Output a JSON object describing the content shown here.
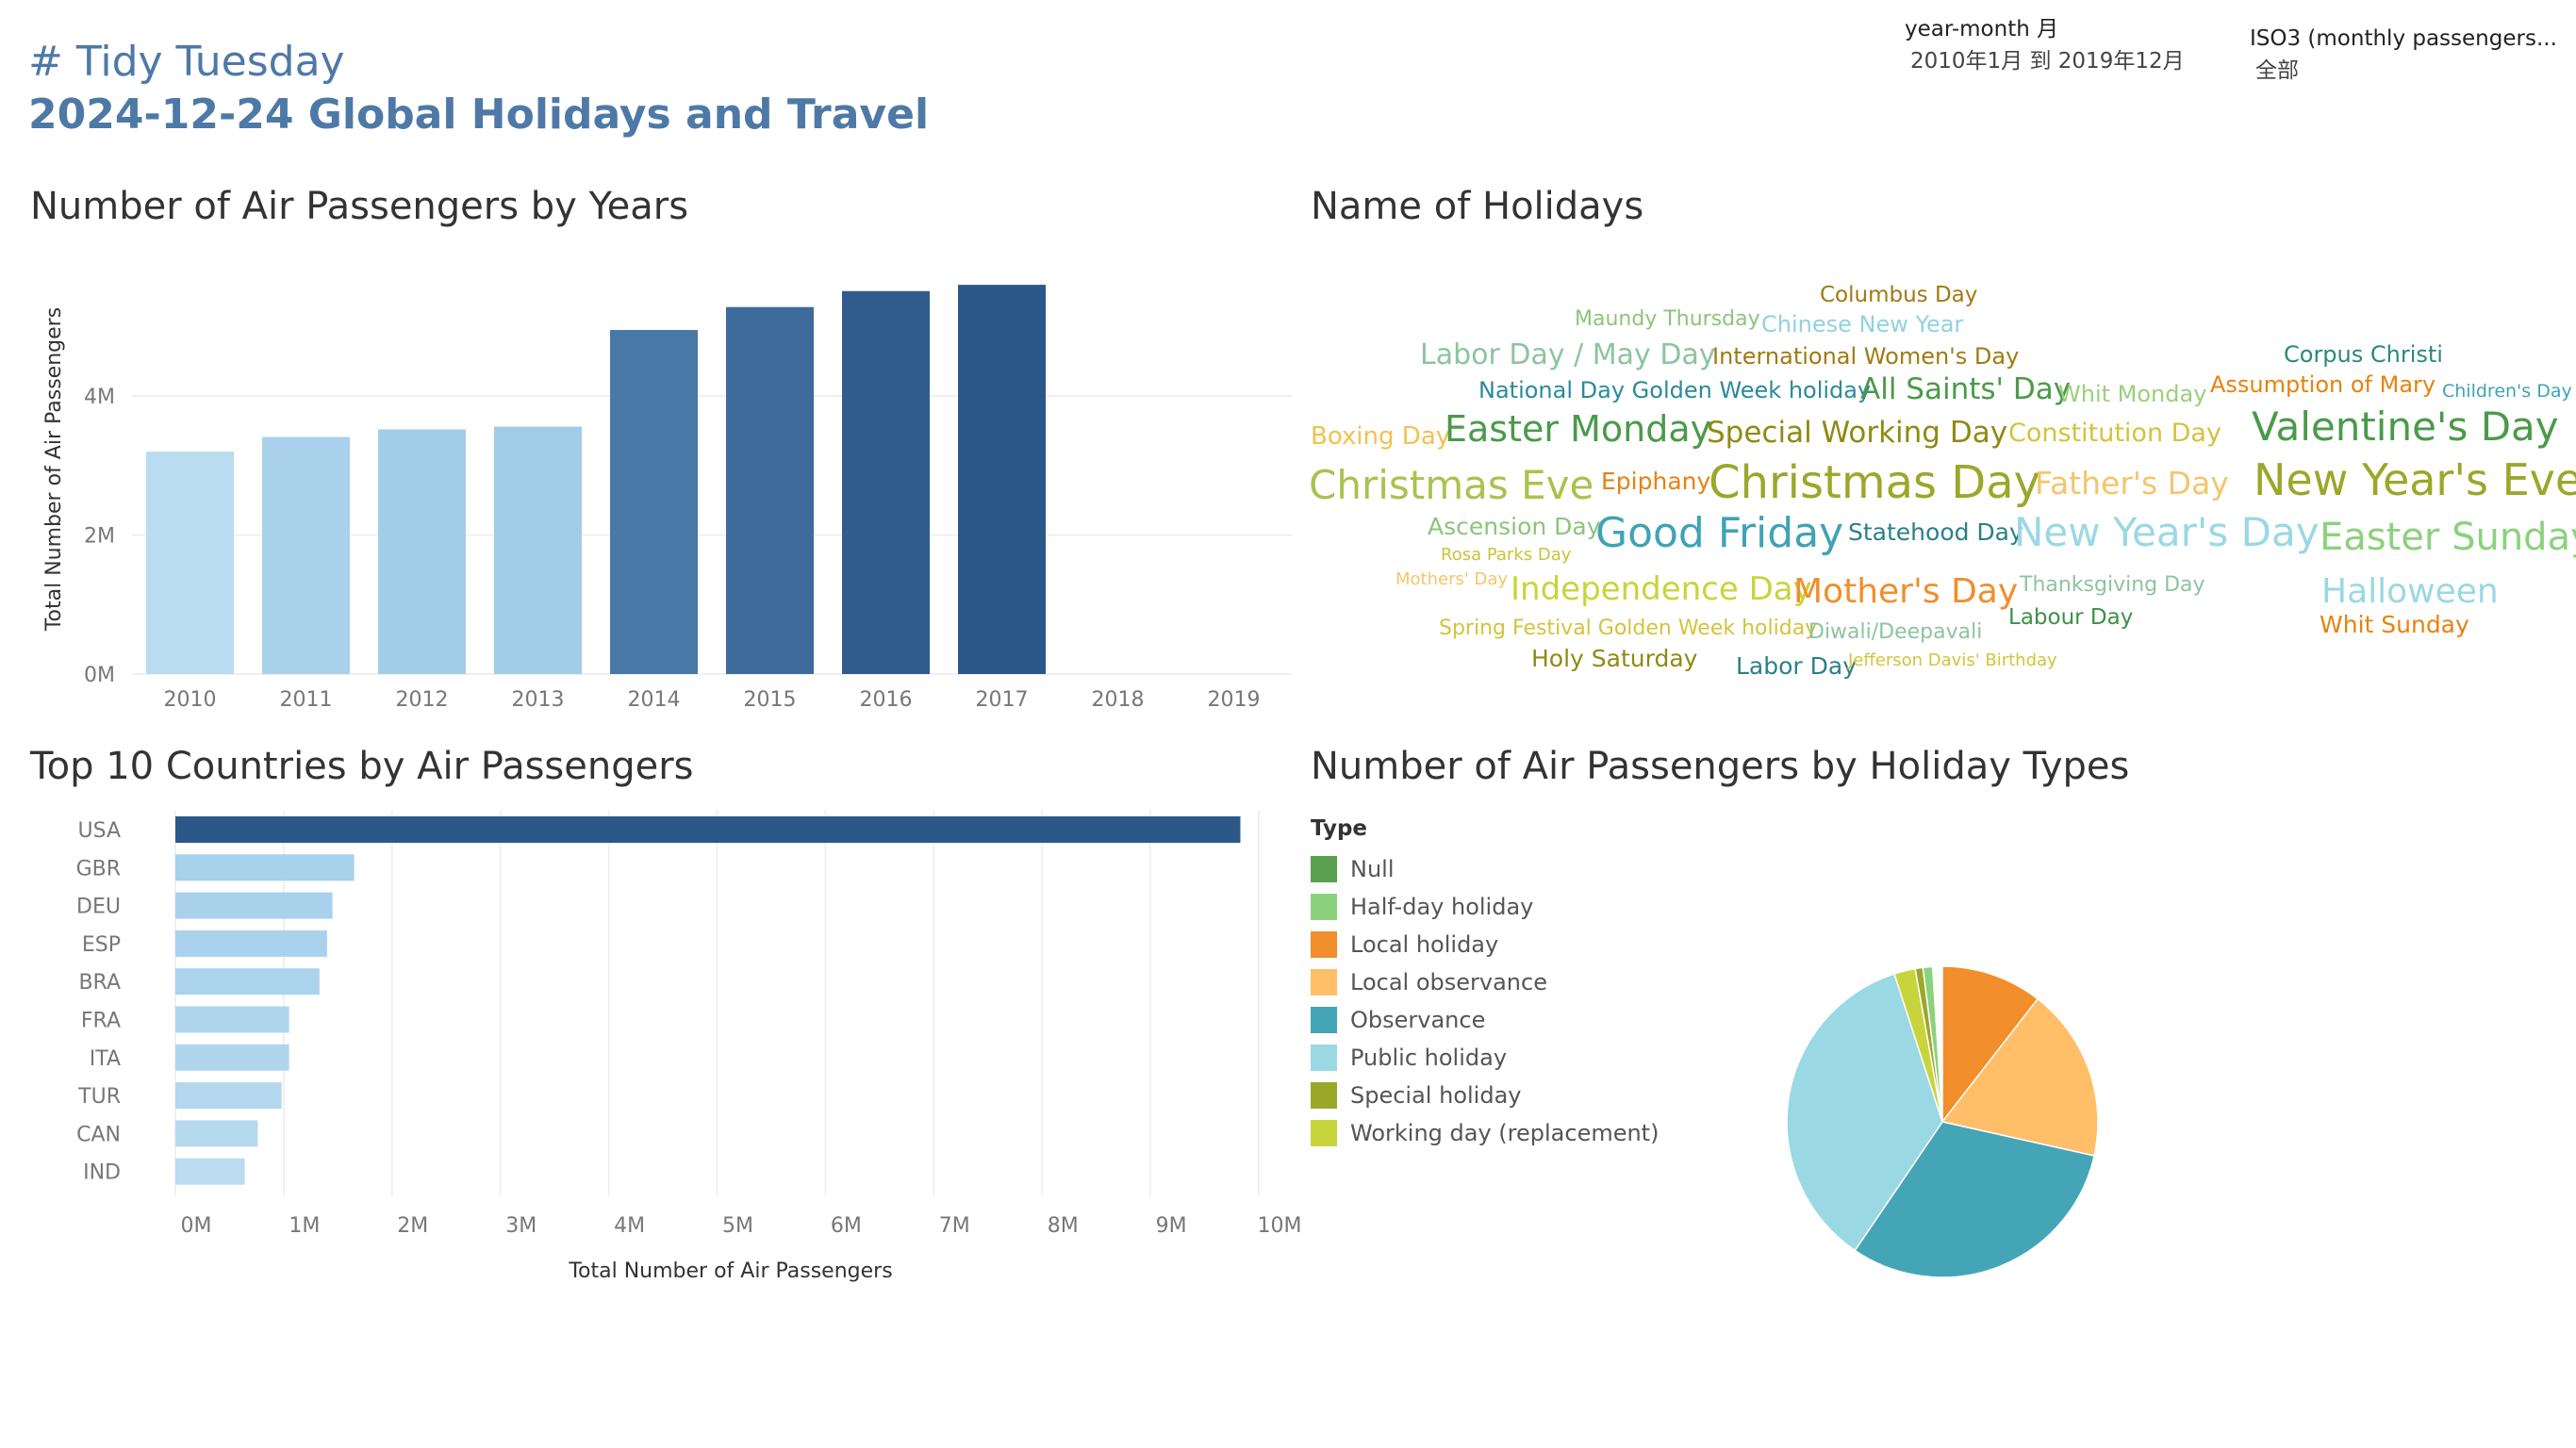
{
  "header": {
    "line1": "# Tidy Tuesday",
    "line2": "2024-12-24 Global Holidays and Travel"
  },
  "filters": [
    {
      "label": "year-month 月",
      "value": "2010年1月 到 2019年12月"
    },
    {
      "label": "ISO3 (monthly passengers...",
      "value": "全部"
    }
  ],
  "sections": {
    "years": "Number of Air Passengers by Years",
    "holidays": "Name of Holidays",
    "countries": "Top 10 Countries by Air Passengers",
    "types": "Number of Air Passengers by Holiday Types"
  },
  "chart_data": [
    {
      "type": "bar",
      "orientation": "vertical",
      "ylabel": "Total Number of Air Passengers",
      "categories": [
        "2010",
        "2011",
        "2012",
        "2013",
        "2014",
        "2015",
        "2016",
        "2017",
        "2018",
        "2019"
      ],
      "values": [
        3200000,
        3410000,
        3520000,
        3560000,
        4950000,
        5280000,
        5510000,
        5600000,
        null,
        null
      ],
      "colors": [
        "#b9dcf0",
        "#a9d1eb",
        "#a2cde8",
        "#a1cce7",
        "#4878a8",
        "#3d6c9c",
        "#2f5c8c",
        "#2b5889",
        "#ffffff",
        "#ffffff"
      ],
      "yticks": [
        "0M",
        "2M",
        "4M"
      ],
      "ylim": [
        0,
        5900000
      ],
      "grid": true
    },
    {
      "type": "bar",
      "orientation": "horizontal",
      "xlabel": "Total Number of Air Passengers",
      "categories": [
        "USA",
        "GBR",
        "DEU",
        "ESP",
        "BRA",
        "FRA",
        "ITA",
        "TUR",
        "CAN",
        "IND"
      ],
      "values": [
        9830000,
        1650000,
        1450000,
        1400000,
        1330000,
        1050000,
        1050000,
        980000,
        760000,
        640000
      ],
      "colors": [
        "#2b5889",
        "#a7d0eb",
        "#a9d1eb",
        "#aad2ec",
        "#acd3ec",
        "#b0d6ee",
        "#b0d6ee",
        "#b3d7ee",
        "#b6d9ef",
        "#badbf0"
      ],
      "xticks": [
        "0M",
        "1M",
        "2M",
        "3M",
        "4M",
        "5M",
        "6M",
        "7M",
        "8M",
        "9M",
        "10M"
      ],
      "xlim": [
        0,
        10000000
      ],
      "grid": true
    },
    {
      "type": "pie",
      "legend_title": "Type",
      "legend_position": "left",
      "labels": [
        "Null",
        "Half-day holiday",
        "Local holiday",
        "Local observance",
        "Observance",
        "Public holiday",
        "Special holiday",
        "Working day (replacement)"
      ],
      "colors": [
        "#59a14f",
        "#8cd17d",
        "#f28e2b",
        "#ffbe67",
        "#44a5b6",
        "#9ad8e4",
        "#9aa82a",
        "#c8d43b"
      ],
      "values": [
        0.0,
        0.01,
        0.105,
        0.18,
        0.31,
        0.355,
        0.008,
        0.022
      ]
    }
  ],
  "holidays": [
    {
      "text": "Columbus Day",
      "color": "#a07a11",
      "size": 23
    },
    {
      "text": "Maundy Thursday",
      "color": "#8cc47b",
      "size": 22
    },
    {
      "text": "Chinese New Year",
      "color": "#8fd3e0",
      "size": 24
    },
    {
      "text": "Labor Day / May Day",
      "color": "#8cc4a0",
      "size": 30
    },
    {
      "text": "International Women's Day",
      "color": "#a07a11",
      "size": 24
    },
    {
      "text": "Corpus Christi",
      "color": "#2a8a7a",
      "size": 24
    },
    {
      "text": "National Day Golden Week holiday",
      "color": "#2a8a9a",
      "size": 24
    },
    {
      "text": "All Saints' Day",
      "color": "#4a9a4a",
      "size": 31
    },
    {
      "text": "Whit Monday",
      "color": "#9acf7c",
      "size": 24
    },
    {
      "text": "Assumption of Mary",
      "color": "#e8820f",
      "size": 24
    },
    {
      "text": "Children's Day",
      "color": "#3fa3b5",
      "size": 19
    },
    {
      "text": "Boxing Day",
      "color": "#f2c14e",
      "size": 26
    },
    {
      "text": "Easter Monday",
      "color": "#4a9a4a",
      "size": 38
    },
    {
      "text": "Special Working Day",
      "color": "#8f8a12",
      "size": 31
    },
    {
      "text": "Constitution Day",
      "color": "#d5c23b",
      "size": 27
    },
    {
      "text": "Valentine's Day",
      "color": "#4a9a4a",
      "size": 42
    },
    {
      "text": "Christmas Eve",
      "color": "#a9c24e",
      "size": 42
    },
    {
      "text": "Epiphany",
      "color": "#e8820f",
      "size": 25
    },
    {
      "text": "Christmas Day",
      "color": "#9aa82a",
      "size": 48
    },
    {
      "text": "Father's Day",
      "color": "#f5c56a",
      "size": 33
    },
    {
      "text": "New Year's Eve",
      "color": "#9aa82a",
      "size": 46
    },
    {
      "text": "Ascension Day",
      "color": "#8cc47b",
      "size": 25
    },
    {
      "text": "Rosa Parks Day",
      "color": "#c8c43b",
      "size": 18
    },
    {
      "text": "Good Friday",
      "color": "#3fa3b5",
      "size": 44
    },
    {
      "text": "Statehood Day",
      "color": "#2a7f8c",
      "size": 25
    },
    {
      "text": "New Year's Day",
      "color": "#9ad8e4",
      "size": 42
    },
    {
      "text": "Easter Sunday",
      "color": "#8cd17d",
      "size": 40
    },
    {
      "text": "Mothers' Day",
      "color": "#f5c56a",
      "size": 18
    },
    {
      "text": "Independence Day",
      "color": "#c8d43b",
      "size": 34
    },
    {
      "text": "Mother's Day",
      "color": "#f28e2b",
      "size": 36
    },
    {
      "text": "Thanksgiving Day",
      "color": "#8cc4a0",
      "size": 22
    },
    {
      "text": "Halloween",
      "color": "#9ad8e4",
      "size": 36
    },
    {
      "text": "Spring Festival Golden Week holiday",
      "color": "#d5c23b",
      "size": 22
    },
    {
      "text": "Diwali/Deepavali",
      "color": "#8cc4a0",
      "size": 22
    },
    {
      "text": "Labour Day",
      "color": "#3f8f4a",
      "size": 23
    },
    {
      "text": "Whit Sunday",
      "color": "#e8820f",
      "size": 25
    },
    {
      "text": "Holy Saturday",
      "color": "#8f8a12",
      "size": 25
    },
    {
      "text": "Labor Day",
      "color": "#2a7f8c",
      "size": 25
    },
    {
      "text": "Jefferson Davis' Birthday",
      "color": "#d5c23b",
      "size": 18
    }
  ]
}
